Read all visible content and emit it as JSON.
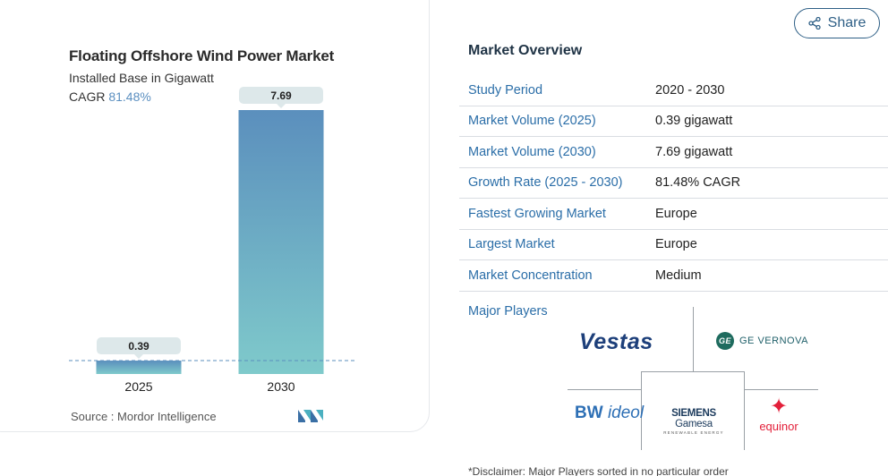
{
  "chart": {
    "title": "Floating Offshore Wind Power Market",
    "subtitle": "Installed Base in Gigawatt",
    "cagr_label": "CAGR",
    "cagr_value": "81.48%",
    "source": "Source : Mordor Intelligence"
  },
  "chart_data": {
    "type": "bar",
    "title": "Floating Offshore Wind Power Market",
    "subtitle": "Installed Base in Gigawatt",
    "categories": [
      "2025",
      "2030"
    ],
    "values": [
      0.39,
      7.69
    ],
    "data_labels": [
      "0.39",
      "7.69"
    ],
    "ylim": [
      0,
      7.69
    ],
    "grid": false,
    "colors": {
      "bar_top": "#5b8fbd",
      "bar_bottom": "#7fcacb",
      "baseline": "#5b8fbd",
      "label_bg": "#dde8ea"
    }
  },
  "share": {
    "label": "Share",
    "icon": "share-icon"
  },
  "overview": {
    "title": "Market Overview",
    "rows": [
      {
        "key": "Study Period",
        "value": "2020 - 2030"
      },
      {
        "key": "Market Volume (2025)",
        "value": "0.39 gigawatt"
      },
      {
        "key": "Market Volume (2030)",
        "value": "7.69 gigawatt"
      },
      {
        "key": "Growth Rate (2025 - 2030)",
        "value": "81.48% CAGR"
      },
      {
        "key": "Fastest Growing Market",
        "value": "Europe"
      },
      {
        "key": "Largest Market",
        "value": "Europe"
      },
      {
        "key": "Market Concentration",
        "value": "Medium"
      }
    ],
    "major_players_label": "Major Players",
    "players": {
      "vestas": "Vestas",
      "ge_vernova": "GE VERNOVA",
      "ge_mark": "GE",
      "bw_ideol_bw": "BW",
      "bw_ideol_ideol": "ideol",
      "siemens": "SIEMENS",
      "gamesa": "Gamesa",
      "siemens_sub": "RENEWABLE ENERGY",
      "equinor": "equinor"
    },
    "disclaimer": "*Disclaimer: Major Players sorted in no particular order"
  }
}
